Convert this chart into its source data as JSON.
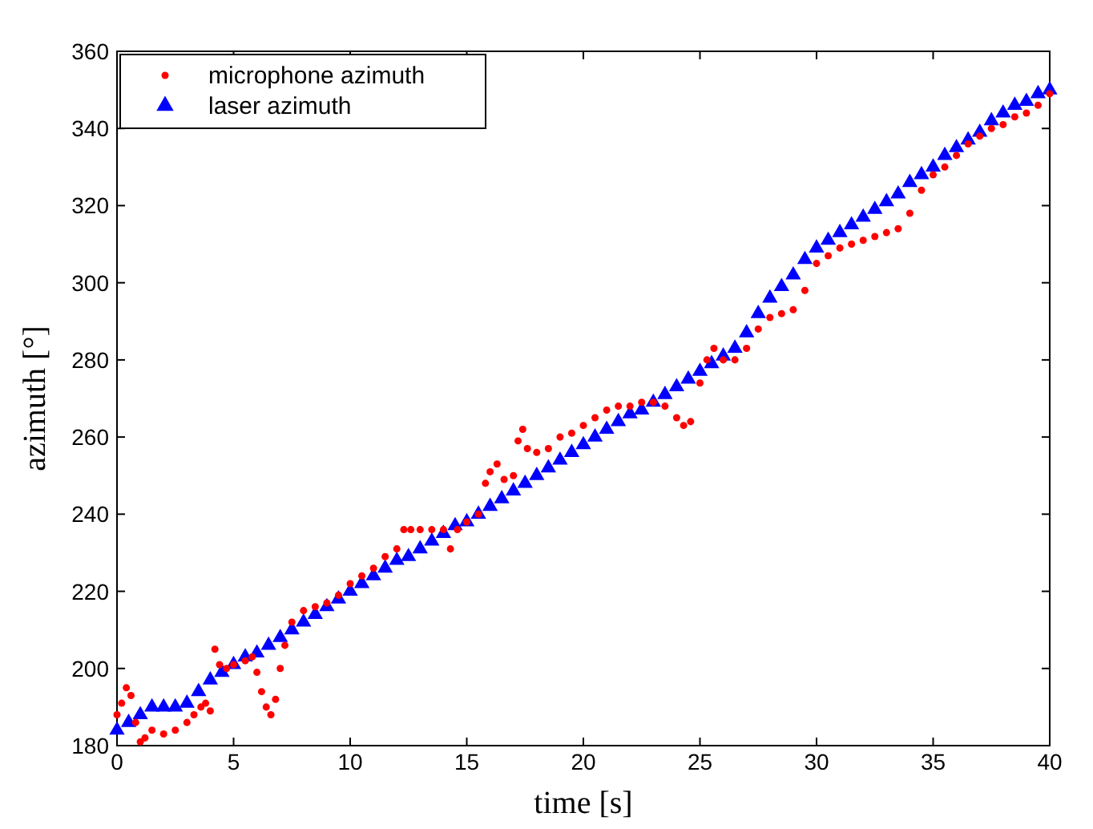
{
  "chart_data": {
    "type": "scatter",
    "xlabel": "time [s]",
    "ylabel": "azimuth [°]",
    "xlim": [
      0,
      40
    ],
    "ylim": [
      180,
      360
    ],
    "xticks": [
      0,
      5,
      10,
      15,
      20,
      25,
      30,
      35,
      40
    ],
    "yticks": [
      180,
      200,
      220,
      240,
      260,
      280,
      300,
      320,
      340,
      360
    ],
    "grid": false,
    "legend": "top left",
    "series": [
      {
        "name": "microphone azimuth",
        "color": "#ff0000",
        "marker": "circle",
        "x": [
          0,
          0.2,
          0.4,
          0.6,
          0.8,
          1,
          1.2,
          1.5,
          2,
          2.5,
          3,
          3.3,
          3.6,
          3.8,
          4,
          4.2,
          4.4,
          4.7,
          5,
          5.5,
          5.8,
          6,
          6.2,
          6.4,
          6.6,
          6.8,
          7,
          7.2,
          7.5,
          8,
          8.5,
          9,
          9.5,
          10,
          10.5,
          11,
          11.5,
          12,
          12.3,
          12.6,
          13,
          13.5,
          14,
          14.3,
          14.6,
          15,
          15.5,
          15.8,
          16,
          16.3,
          16.6,
          17,
          17.2,
          17.4,
          17.6,
          18,
          18.5,
          19,
          19.5,
          20,
          20.5,
          21,
          21.5,
          22,
          22.5,
          23,
          23.5,
          24,
          24.3,
          24.6,
          25,
          25.3,
          25.6,
          26,
          26.5,
          27,
          27.5,
          28,
          28.5,
          29,
          29.5,
          30,
          30.5,
          31,
          31.5,
          32,
          32.5,
          33,
          33.5,
          34,
          34.5,
          35,
          35.5,
          36,
          36.5,
          37,
          37.5,
          38,
          38.5,
          39,
          39.5,
          40
        ],
        "values": [
          188,
          191,
          195,
          193,
          186,
          181,
          182,
          184,
          183,
          184,
          186,
          188,
          190,
          191,
          189,
          205,
          201,
          200,
          201,
          202,
          203,
          199,
          194,
          190,
          188,
          192,
          200,
          206,
          212,
          215,
          216,
          217,
          219,
          222,
          224,
          226,
          229,
          231,
          236,
          236,
          236,
          236,
          236,
          231,
          236,
          238,
          240,
          248,
          251,
          253,
          249,
          250,
          259,
          262,
          257,
          256,
          257,
          260,
          261,
          263,
          265,
          267,
          268,
          268,
          269,
          269,
          268,
          265,
          263,
          264,
          274,
          280,
          283,
          280,
          280,
          283,
          288,
          291,
          292,
          293,
          298,
          305,
          307,
          309,
          310,
          311,
          312,
          313,
          314,
          318,
          324,
          328,
          330,
          333,
          336,
          338,
          340,
          341,
          343,
          344,
          346,
          349
        ]
      },
      {
        "name": "laser azimuth",
        "color": "#0000ff",
        "marker": "triangle",
        "x": [
          0,
          0.5,
          1,
          1.5,
          2,
          2.5,
          3,
          3.5,
          4,
          4.5,
          5,
          5.5,
          6,
          6.5,
          7,
          7.5,
          8,
          8.5,
          9,
          9.5,
          10,
          10.5,
          11,
          11.5,
          12,
          12.5,
          13,
          13.5,
          14,
          14.5,
          15,
          15.5,
          16,
          16.5,
          17,
          17.5,
          18,
          18.5,
          19,
          19.5,
          20,
          20.5,
          21,
          21.5,
          22,
          22.5,
          23,
          23.5,
          24,
          24.5,
          25,
          25.5,
          26,
          26.5,
          27,
          27.5,
          28,
          28.5,
          29,
          29.5,
          30,
          30.5,
          31,
          31.5,
          32,
          32.5,
          33,
          33.5,
          34,
          34.5,
          35,
          35.5,
          36,
          36.5,
          37,
          37.5,
          38,
          38.5,
          39,
          39.5,
          40
        ],
        "values": [
          184,
          186,
          188,
          190,
          190,
          190,
          191,
          194,
          197,
          199,
          201,
          203,
          204,
          206,
          208,
          210,
          212,
          214,
          216,
          218,
          220,
          222,
          224,
          226,
          228,
          229,
          231,
          233,
          235,
          237,
          238,
          240,
          242,
          244,
          246,
          248,
          250,
          252,
          254,
          256,
          258,
          260,
          262,
          264,
          266,
          267,
          269,
          271,
          273,
          275,
          277,
          279,
          281,
          283,
          287,
          292,
          296,
          299,
          302,
          306,
          309,
          311,
          313,
          315,
          317,
          319,
          321,
          323,
          326,
          328,
          330,
          333,
          335,
          337,
          339,
          342,
          344,
          346,
          347,
          349,
          350
        ]
      }
    ]
  }
}
